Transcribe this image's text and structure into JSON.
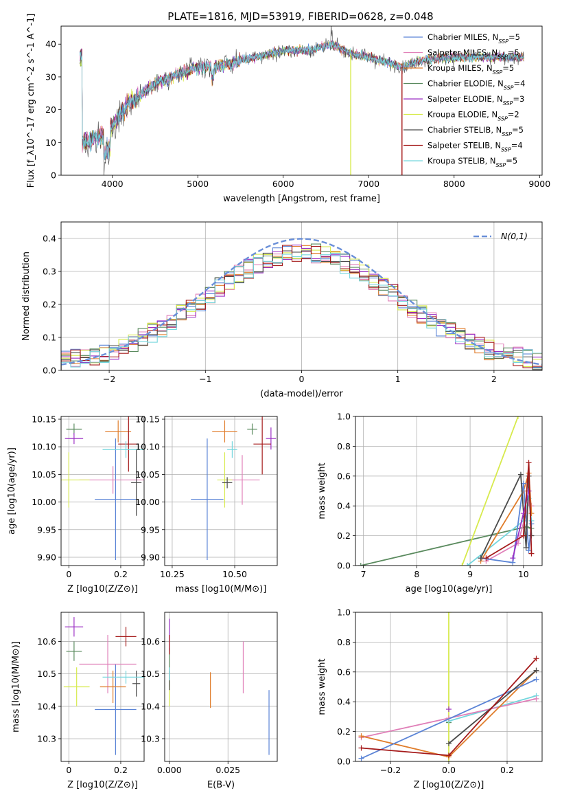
{
  "figure": {
    "title": "PLATE=1816, MJD=53919, FIBERID=0628, z=0.048"
  },
  "series_names": [
    "Chabrier MILES, N_SSP=5",
    "Salpeter MILES, N_SSP=5",
    "Kroupa MILES, N_SSP=5",
    "Chabrier ELODIE, N_SSP=4",
    "Salpeter ELODIE, N_SSP=3",
    "Kroupa ELODIE, N_SSP=2",
    "Chabrier STELIB, N_SSP=5",
    "Salpeter STELIB, N_SSP=4",
    "Kroupa STELIB, N_SSP=5"
  ],
  "series_colors": [
    "#5b84d6",
    "#e07fb8",
    "#e07c2a",
    "#5a8a5e",
    "#9b2fc4",
    "#d7ea4c",
    "#4a4a4a",
    "#a51a1a",
    "#74d6dd"
  ],
  "chart_data": [
    {
      "id": "spectrum",
      "type": "line",
      "xlabel": "wavelength [Angstrom, rest frame]",
      "ylabel": "Flux [f_λ10^-17 erg cm^-2 s^-1 A^-1]",
      "xlim": [
        3400,
        9030
      ],
      "ylim": [
        0,
        45.5
      ],
      "xticks": [
        4000,
        5000,
        6000,
        7000,
        8000,
        9000
      ],
      "yticks": [
        0,
        10,
        20,
        30,
        40
      ],
      "grid": false,
      "legend": "top-right",
      "data_key_points": [
        [
          3650,
          10
        ],
        [
          3900,
          12
        ],
        [
          4000,
          15
        ],
        [
          4200,
          22
        ],
        [
          4500,
          28
        ],
        [
          4700,
          30
        ],
        [
          5000,
          33
        ],
        [
          5200,
          33
        ],
        [
          5500,
          35
        ],
        [
          6000,
          38
        ],
        [
          6300,
          38
        ],
        [
          6560,
          40
        ],
        [
          6800,
          37
        ],
        [
          7000,
          36
        ],
        [
          7400,
          33
        ],
        [
          7600,
          35
        ],
        [
          8000,
          36
        ],
        [
          8500,
          36
        ],
        [
          8800,
          36
        ]
      ],
      "spectrum_range": [
        3620,
        8820
      ],
      "drops": [
        {
          "series": 5,
          "x": 6790
        },
        {
          "series": 7,
          "x": 7390
        }
      ]
    },
    {
      "id": "residuals",
      "type": "bar",
      "xlabel": "(data-model)/error",
      "ylabel": "Normed distribution",
      "xlim": [
        -2.5,
        2.5
      ],
      "ylim": [
        0,
        0.45
      ],
      "xticks": [
        -2,
        -1,
        0,
        1,
        2
      ],
      "yticks": [
        0.0,
        0.1,
        0.2,
        0.3,
        0.4
      ],
      "grid": true,
      "legend": "top-right",
      "reference_label": "N(0,1)",
      "bin_width": 0.1,
      "bin_range": [
        -2.5,
        2.5
      ]
    },
    {
      "id": "z-age",
      "type": "scatter",
      "xlabel": "Z [log10(Z/Z⊙)]",
      "ylabel": "age [log10(age/yr)]",
      "xlim": [
        -0.03,
        0.29
      ],
      "ylim": [
        9.885,
        10.155
      ],
      "xticks": [
        0.0,
        0.2
      ],
      "yticks": [
        9.9,
        9.95,
        10.0,
        10.05,
        10.1,
        10.15
      ],
      "grid": true,
      "points": [
        {
          "s": 0,
          "x": 0.18,
          "y": 10.005,
          "xerr": 0.08,
          "yerr": 0.11
        },
        {
          "s": 1,
          "x": 0.17,
          "y": 10.04,
          "xerr": 0.13,
          "yerr": 0.025
        },
        {
          "s": 2,
          "x": 0.19,
          "y": 10.128,
          "xerr": 0.05,
          "yerr": 0.02
        },
        {
          "s": 3,
          "x": 0.02,
          "y": 10.132,
          "xerr": 0.03,
          "yerr": 0.01
        },
        {
          "s": 4,
          "x": 0.02,
          "y": 10.115,
          "xerr": 0.035,
          "yerr": 0.01
        },
        {
          "s": 5,
          "x": 0.0,
          "y": 10.04,
          "xerr": 0.08,
          "yerr": 0.05
        },
        {
          "s": 6,
          "x": 0.26,
          "y": 10.035,
          "xerr": 0.02,
          "yerr": 0.06
        },
        {
          "s": 7,
          "x": 0.23,
          "y": 10.105,
          "xerr": 0.04,
          "yerr": 0.05
        },
        {
          "s": 8,
          "x": 0.22,
          "y": 10.095,
          "xerr": 0.09,
          "yerr": 0.015
        }
      ]
    },
    {
      "id": "mass-age",
      "type": "scatter",
      "xlabel": "mass [log10(M/M⊙)]",
      "ylabel": "",
      "xlim": [
        10.22,
        10.67
      ],
      "ylim": [
        9.885,
        10.155
      ],
      "xticks": [
        10.25,
        10.5
      ],
      "xtick_labels": [
        "10.25",
        "10.50"
      ],
      "yticks": [
        9.9,
        9.95,
        10.0,
        10.05,
        10.1,
        10.15
      ],
      "grid": true,
      "points": [
        {
          "s": 0,
          "x": 10.39,
          "y": 10.005,
          "xerr": 0.065,
          "yerr": 0.11
        },
        {
          "s": 1,
          "x": 10.53,
          "y": 10.04,
          "xerr": 0.07,
          "yerr": 0.045
        },
        {
          "s": 2,
          "x": 10.46,
          "y": 10.128,
          "xerr": 0.05,
          "yerr": 0.02
        },
        {
          "s": 3,
          "x": 10.57,
          "y": 10.132,
          "xerr": 0.02,
          "yerr": 0.01
        },
        {
          "s": 4,
          "x": 10.645,
          "y": 10.115,
          "xerr": 0.02,
          "yerr": 0.02
        },
        {
          "s": 5,
          "x": 10.46,
          "y": 10.04,
          "xerr": 0.03,
          "yerr": 0.05
        },
        {
          "s": 6,
          "x": 10.47,
          "y": 10.035,
          "xerr": 0.02,
          "yerr": 0.01
        },
        {
          "s": 7,
          "x": 10.61,
          "y": 10.105,
          "xerr": 0.035,
          "yerr": 0.055
        },
        {
          "s": 8,
          "x": 10.49,
          "y": 10.095,
          "xerr": 0.02,
          "yerr": 0.015
        }
      ]
    },
    {
      "id": "age-weight",
      "type": "line",
      "xlabel": "age [log10(age/yr)]",
      "ylabel": "mass weight",
      "xlim": [
        6.85,
        10.35
      ],
      "ylim": [
        0,
        1.0
      ],
      "xticks": [
        7,
        8,
        9,
        10
      ],
      "yticks": [
        0.0,
        0.2,
        0.4,
        0.6,
        0.8,
        1.0
      ],
      "grid": true,
      "lines": [
        {
          "s": 0,
          "points": [
            [
              9.2,
              0.05
            ],
            [
              9.8,
              0.02
            ],
            [
              10.0,
              0.55
            ],
            [
              10.1,
              0.1
            ],
            [
              10.15,
              0.28
            ]
          ]
        },
        {
          "s": 1,
          "points": [
            [
              9.3,
              0.03
            ],
            [
              9.9,
              0.15
            ],
            [
              10.1,
              0.42
            ],
            [
              10.15,
              0.4
            ]
          ]
        },
        {
          "s": 2,
          "points": [
            [
              9.2,
              0.03
            ],
            [
              10.0,
              0.5
            ],
            [
              10.1,
              0.62
            ],
            [
              10.15,
              0.35
            ]
          ]
        },
        {
          "s": 3,
          "points": [
            [
              6.95,
              0.0
            ],
            [
              10.05,
              0.26
            ],
            [
              10.15,
              0.25
            ]
          ]
        },
        {
          "s": 4,
          "points": [
            [
              9.8,
              0.05
            ],
            [
              10.0,
              0.35
            ],
            [
              10.1,
              0.5
            ]
          ]
        },
        {
          "s": 5,
          "points": [
            [
              8.85,
              0.0
            ],
            [
              9.9,
              1.0
            ]
          ]
        },
        {
          "s": 6,
          "points": [
            [
              9.2,
              0.05
            ],
            [
              9.95,
              0.61
            ],
            [
              10.05,
              0.12
            ],
            [
              10.1,
              0.6
            ],
            [
              10.15,
              0.2
            ]
          ]
        },
        {
          "s": 7,
          "points": [
            [
              9.3,
              0.05
            ],
            [
              10.0,
              0.2
            ],
            [
              10.1,
              0.69
            ],
            [
              10.15,
              0.08
            ]
          ]
        },
        {
          "s": 8,
          "points": [
            [
              8.95,
              0.0
            ],
            [
              10.0,
              0.3
            ],
            [
              10.1,
              0.45
            ],
            [
              10.15,
              0.3
            ]
          ]
        }
      ]
    },
    {
      "id": "z-mass",
      "type": "scatter",
      "xlabel": "Z [log10(Z/Z⊙)]",
      "ylabel": "mass [log10(M/M⊙)]",
      "xlim": [
        -0.03,
        0.29
      ],
      "ylim": [
        10.23,
        10.69
      ],
      "xticks": [
        0.0,
        0.2
      ],
      "yticks": [
        10.3,
        10.4,
        10.5,
        10.6
      ],
      "grid": true,
      "points": [
        {
          "s": 0,
          "x": 0.18,
          "y": 10.39,
          "xerr": 0.08,
          "yerr": 0.14
        },
        {
          "s": 1,
          "x": 0.15,
          "y": 10.53,
          "xerr": 0.11,
          "yerr": 0.09
        },
        {
          "s": 2,
          "x": 0.17,
          "y": 10.46,
          "xerr": 0.05,
          "yerr": 0.05
        },
        {
          "s": 3,
          "x": 0.02,
          "y": 10.57,
          "xerr": 0.03,
          "yerr": 0.03
        },
        {
          "s": 4,
          "x": 0.02,
          "y": 10.645,
          "xerr": 0.035,
          "yerr": 0.03
        },
        {
          "s": 5,
          "x": 0.03,
          "y": 10.46,
          "xerr": 0.05,
          "yerr": 0.06
        },
        {
          "s": 6,
          "x": 0.26,
          "y": 10.47,
          "xerr": 0.015,
          "yerr": 0.04
        },
        {
          "s": 7,
          "x": 0.22,
          "y": 10.615,
          "xerr": 0.04,
          "yerr": 0.03
        },
        {
          "s": 8,
          "x": 0.22,
          "y": 10.49,
          "xerr": 0.09,
          "yerr": 0.02
        }
      ]
    },
    {
      "id": "ebv-mass",
      "type": "scatter",
      "xlabel": "E(B-V)",
      "ylabel": "",
      "xlim": [
        -0.002,
        0.046
      ],
      "ylim": [
        10.23,
        10.69
      ],
      "xticks": [
        0.0,
        0.025
      ],
      "xtick_labels": [
        "0.000",
        "0.025"
      ],
      "yticks": [
        10.3,
        10.4,
        10.5,
        10.6
      ],
      "grid": true,
      "points": [
        {
          "s": 0,
          "x": 0.0425,
          "y": 10.35,
          "xerr": 0.0,
          "yerr": 0.1
        },
        {
          "s": 1,
          "x": 0.0315,
          "y": 10.52,
          "xerr": 0.0,
          "yerr": 0.08
        },
        {
          "s": 2,
          "x": 0.0175,
          "y": 10.45,
          "xerr": 0.0,
          "yerr": 0.055
        },
        {
          "s": 3,
          "x": 0.0,
          "y": 10.52,
          "xerr": 0.0,
          "yerr": 0.06
        },
        {
          "s": 4,
          "x": 0.0,
          "y": 10.62,
          "xerr": 0.0,
          "yerr": 0.05
        },
        {
          "s": 5,
          "x": 0.0,
          "y": 10.44,
          "xerr": 0.0,
          "yerr": 0.04
        },
        {
          "s": 6,
          "x": 0.0,
          "y": 10.48,
          "xerr": 0.0,
          "yerr": 0.03
        },
        {
          "s": 7,
          "x": 0.0,
          "y": 10.59,
          "xerr": 0.0,
          "yerr": 0.03
        },
        {
          "s": 8,
          "x": 0.0,
          "y": 10.5,
          "xerr": 0.0,
          "yerr": 0.02
        }
      ]
    },
    {
      "id": "z-weight",
      "type": "line",
      "xlabel": "Z [log10(Z/Z⊙)]",
      "ylabel": "mass weight",
      "xlim": [
        -0.32,
        0.32
      ],
      "ylim": [
        0,
        1.0
      ],
      "xticks": [
        -0.2,
        0.0,
        0.2
      ],
      "xtick_labels": [
        "−0.2",
        "0.0",
        "0.2"
      ],
      "yticks": [
        0.0,
        0.2,
        0.4,
        0.6,
        0.8,
        1.0
      ],
      "grid": true,
      "lines": [
        {
          "s": 0,
          "points": [
            [
              -0.3,
              0.02
            ],
            [
              0.3,
              0.55
            ]
          ]
        },
        {
          "s": 1,
          "points": [
            [
              -0.3,
              0.16
            ],
            [
              0.0,
              0.29
            ],
            [
              0.3,
              0.42
            ]
          ]
        },
        {
          "s": 2,
          "points": [
            [
              -0.3,
              0.17
            ],
            [
              0.0,
              0.03
            ],
            [
              0.3,
              0.61
            ]
          ]
        },
        {
          "s": 3,
          "points": [
            [
              0.0,
              0.26
            ]
          ]
        },
        {
          "s": 4,
          "points": [
            [
              0.0,
              0.35
            ]
          ]
        },
        {
          "s": 5,
          "points": [
            [
              0.0,
              0.0
            ],
            [
              0.0,
              1.0
            ]
          ]
        },
        {
          "s": 6,
          "points": [
            [
              0.0,
              0.12
            ],
            [
              0.3,
              0.61
            ]
          ]
        },
        {
          "s": 7,
          "points": [
            [
              -0.3,
              0.09
            ],
            [
              0.0,
              0.04
            ],
            [
              0.3,
              0.69
            ]
          ]
        },
        {
          "s": 8,
          "points": [
            [
              0.0,
              0.27
            ],
            [
              0.3,
              0.44
            ]
          ]
        }
      ]
    }
  ]
}
